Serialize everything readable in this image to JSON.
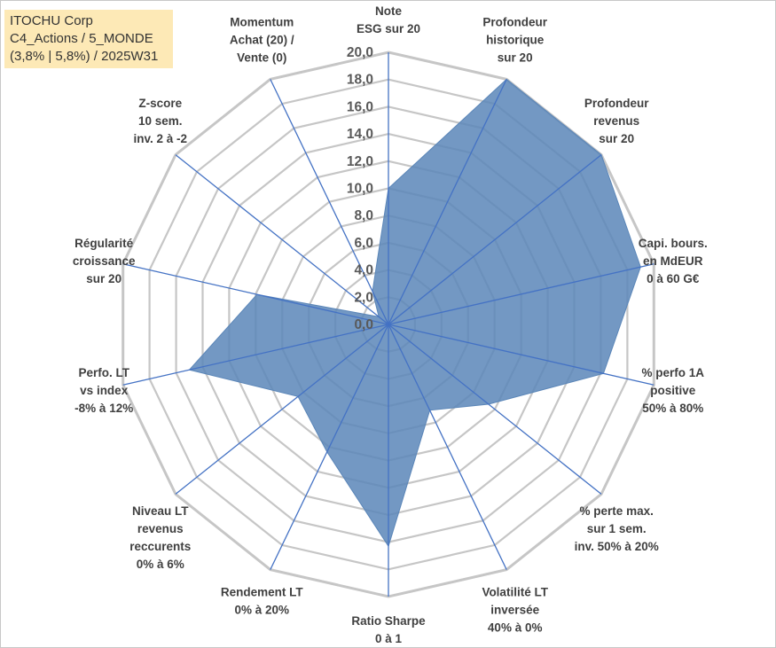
{
  "title_box": {
    "line1": "ITOCHU Corp",
    "line2": "C4_Actions / 5_MONDE",
    "line3": "(3,8% | 5,8%) / 2025W31"
  },
  "colors": {
    "fill": "#5b86b8",
    "stroke": "#4472c4",
    "grid": "#c6c6c6",
    "title_bg": "#fde9b6"
  },
  "chart_data": {
    "type": "radar",
    "rlim": [
      0,
      20
    ],
    "ticks": [
      "0,0",
      "2,0",
      "4,0",
      "6,0",
      "8,0",
      "10,0",
      "12,0",
      "14,0",
      "16,0",
      "18,0",
      "20,0"
    ],
    "axes": [
      [
        "Note",
        "ESG sur 20"
      ],
      [
        "Profondeur",
        "historique",
        "sur 20"
      ],
      [
        "Profondeur",
        "revenus",
        "sur 20"
      ],
      [
        "Capi. bours.",
        "en MdEUR",
        "0 à 60 G€"
      ],
      [
        "% perfo 1A",
        "positive",
        "50% à 80%"
      ],
      [
        "% perte max.",
        "sur 1 sem.",
        "inv. 50% à 20%"
      ],
      [
        "Volatilité LT",
        "inversée",
        "40% à 0%"
      ],
      [
        "Ratio Sharpe",
        "0 à 1"
      ],
      [
        "Rendement LT",
        "0% à 20%"
      ],
      [
        "Niveau LT",
        "revenus",
        "reccurents",
        "0% à 6%"
      ],
      [
        "Perfo. LT",
        "vs index",
        "-8% à 12%"
      ],
      [
        "Régularité",
        "croissance",
        "sur 20"
      ],
      [
        "Z-score",
        "10 sem.",
        "inv. 2 à -2"
      ],
      [
        "Momentum",
        "Achat (20) /",
        "Vente (0)"
      ]
    ],
    "series": [
      {
        "values": [
          10.0,
          20.0,
          20.0,
          19.0,
          16.2,
          9.4,
          7.0,
          16.3,
          10.4,
          8.5,
          15.0,
          9.9,
          0.9,
          2.7
        ]
      }
    ],
    "grid": true,
    "legend": "none"
  }
}
